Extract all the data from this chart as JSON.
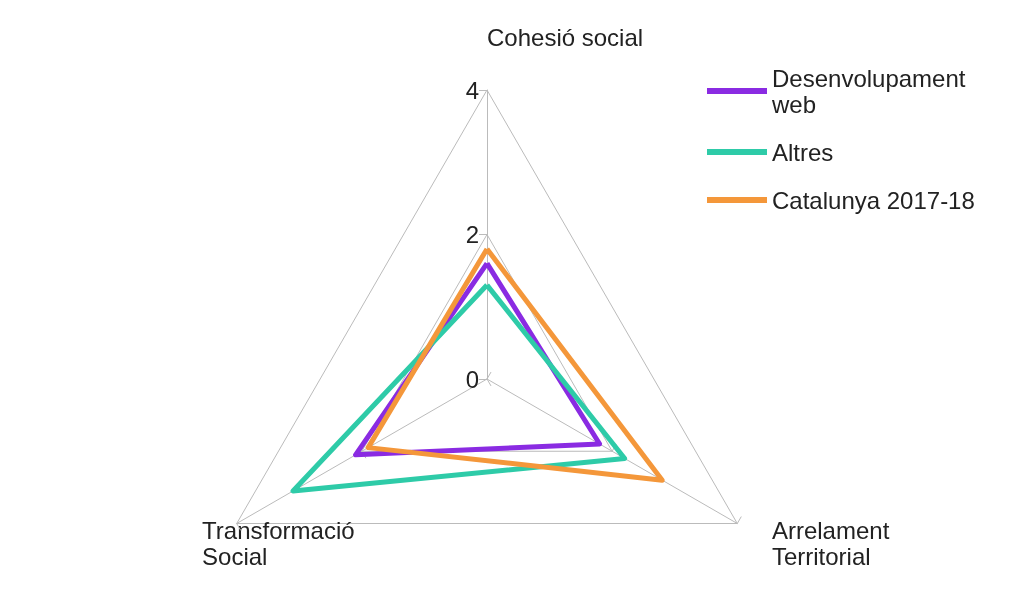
{
  "chart_data": {
    "type": "radar",
    "categories": [
      "Cohesió social",
      "Arrelament Territorial",
      "Transformació Social"
    ],
    "series": [
      {
        "name": "Desenvolupament web",
        "color": "#8a2be2",
        "values": [
          1.6,
          1.8,
          2.1
        ]
      },
      {
        "name": "Altres",
        "color": "#2ecba8",
        "values": [
          1.3,
          2.2,
          3.1
        ]
      },
      {
        "name": "Catalunya 2017-18",
        "color": "#f4973a",
        "values": [
          1.8,
          2.8,
          1.9
        ]
      }
    ],
    "ylim": [
      0,
      4
    ],
    "yticks": [
      0,
      2,
      4
    ],
    "grid": true,
    "legend": "top right",
    "marker": "none",
    "line_style": "solid"
  }
}
